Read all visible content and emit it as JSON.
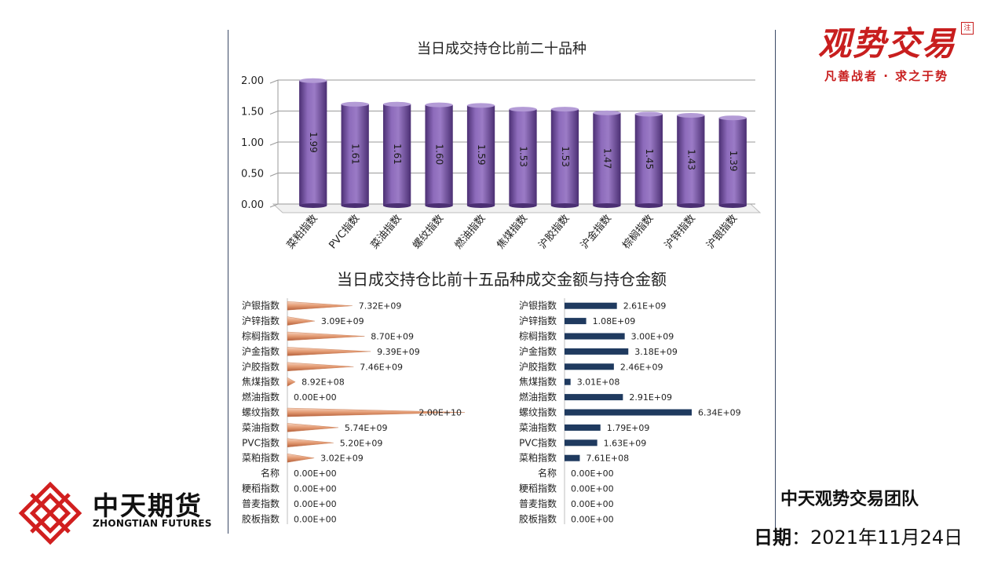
{
  "branding": {
    "logo_text": "观势交易",
    "seal_text": "注",
    "slogan": "凡善战者 · 求之于势"
  },
  "company": {
    "name_cn": "中天期货",
    "name_en": "ZHONGTIAN FUTURES"
  },
  "footer": {
    "team": "中天观势交易团队",
    "date_label": "日期",
    "date_sep": "：",
    "date_value": "2021年11月24日"
  },
  "colors": {
    "bar_purple": "#7b5aa6",
    "cone_orange": "#e39a72",
    "bar_navy": "#1f3a5f",
    "brand_red": "#c81e1e"
  },
  "bottom_title": "当日成交持仓比前十五品种成交金额与持仓金额",
  "chart_data": [
    {
      "type": "bar",
      "title": "当日成交持仓比前二十品种",
      "categories": [
        "菜粕指数",
        "PVC指数",
        "菜油指数",
        "螺纹指数",
        "燃油指数",
        "焦煤指数",
        "沪胶指数",
        "沪金指数",
        "棕榈指数",
        "沪锌指数",
        "沪银指数"
      ],
      "values": [
        1.99,
        1.61,
        1.61,
        1.6,
        1.59,
        1.53,
        1.53,
        1.47,
        1.45,
        1.43,
        1.39
      ],
      "data_labels": [
        "1.99",
        "1.61",
        "1.61",
        "1.60",
        "1.59",
        "1.53",
        "1.53",
        "1.47",
        "1.45",
        "1.43",
        "1.39"
      ],
      "y_ticks": [
        "0.00",
        "0.50",
        "1.00",
        "1.50",
        "2.00"
      ],
      "ylim": [
        0,
        2
      ],
      "xlabel": "",
      "ylabel": ""
    },
    {
      "type": "bar",
      "orientation": "horizontal",
      "series_name": "成交金额",
      "categories": [
        "沪银指数",
        "沪锌指数",
        "棕榈指数",
        "沪金指数",
        "沪胶指数",
        "焦煤指数",
        "燃油指数",
        "螺纹指数",
        "菜油指数",
        "PVC指数",
        "菜粕指数",
        "名称",
        "粳稻指数",
        "普麦指数",
        "胶板指数"
      ],
      "values": [
        7320000000.0,
        3090000000.0,
        8700000000.0,
        9390000000.0,
        7460000000.0,
        892000000.0,
        0,
        20000000000.0,
        5740000000.0,
        5200000000.0,
        3020000000.0,
        0,
        0,
        0,
        0
      ],
      "data_labels": [
        "7.32E+09",
        "3.09E+09",
        "8.70E+09",
        "9.39E+09",
        "7.46E+09",
        "8.92E+08",
        "0.00E+00",
        "2.00E+10",
        "5.74E+09",
        "5.20E+09",
        "3.02E+09",
        "0.00E+00",
        "0.00E+00",
        "0.00E+00",
        "0.00E+00"
      ],
      "xlim": [
        0,
        20000000000.0
      ]
    },
    {
      "type": "bar",
      "orientation": "horizontal",
      "series_name": "持仓金额",
      "categories": [
        "沪银指数",
        "沪锌指数",
        "棕榈指数",
        "沪金指数",
        "沪胶指数",
        "焦煤指数",
        "燃油指数",
        "螺纹指数",
        "菜油指数",
        "PVC指数",
        "菜粕指数",
        "名称",
        "粳稻指数",
        "普麦指数",
        "胶板指数"
      ],
      "values": [
        2610000000.0,
        1080000000.0,
        3000000000.0,
        3180000000.0,
        2460000000.0,
        301000000.0,
        2910000000.0,
        6340000000.0,
        1790000000.0,
        1630000000.0,
        761000000.0,
        0,
        0,
        0,
        0
      ],
      "data_labels": [
        "2.61E+09",
        "1.08E+09",
        "3.00E+09",
        "3.18E+09",
        "2.46E+09",
        "3.01E+08",
        "2.91E+09",
        "6.34E+09",
        "1.79E+09",
        "1.63E+09",
        "7.61E+08",
        "0.00E+00",
        "0.00E+00",
        "0.00E+00",
        "0.00E+00"
      ],
      "xlim": [
        0,
        6340000000.0
      ]
    }
  ]
}
